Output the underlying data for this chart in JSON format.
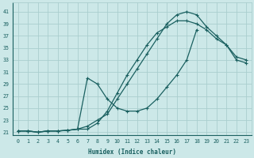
{
  "xlabel": "Humidex (Indice chaleur)",
  "xlim": [
    -0.5,
    23.5
  ],
  "ylim": [
    20.5,
    42.5
  ],
  "xticks": [
    0,
    1,
    2,
    3,
    4,
    5,
    6,
    7,
    8,
    9,
    10,
    11,
    12,
    13,
    14,
    15,
    16,
    17,
    18,
    19,
    20,
    21,
    22,
    23
  ],
  "yticks": [
    21,
    23,
    25,
    27,
    29,
    31,
    33,
    35,
    37,
    39,
    41
  ],
  "bg_color": "#cce8e8",
  "grid_color": "#aacece",
  "line_color": "#1a6060",
  "curve1_x": [
    0,
    1,
    2,
    3,
    4,
    5,
    6,
    7,
    8,
    9,
    10,
    11,
    12,
    13,
    14,
    15,
    16,
    17,
    18,
    19,
    20,
    21,
    22,
    23
  ],
  "curve1_y": [
    21.2,
    21.2,
    21.0,
    21.2,
    21.2,
    21.3,
    21.5,
    21.5,
    22.5,
    24.5,
    27.5,
    30.5,
    33.0,
    35.5,
    37.5,
    38.5,
    39.5,
    39.5,
    39.0,
    38.0,
    36.5,
    35.5,
    33.0,
    32.5
  ],
  "curve2_x": [
    0,
    1,
    2,
    3,
    4,
    5,
    6,
    7,
    8,
    9,
    10,
    11,
    12,
    13,
    14,
    15,
    16,
    17,
    18
  ],
  "curve2_y": [
    21.2,
    21.2,
    21.0,
    21.2,
    21.2,
    21.3,
    21.5,
    30.0,
    29.0,
    26.5,
    25.0,
    24.5,
    24.5,
    25.0,
    26.5,
    28.5,
    30.5,
    33.0,
    38.0
  ],
  "curve3_x": [
    0,
    1,
    2,
    3,
    4,
    5,
    6,
    7,
    8,
    9,
    10,
    11,
    12,
    13,
    14,
    15,
    16,
    17,
    18,
    19,
    20,
    21,
    22,
    23
  ],
  "curve3_y": [
    21.2,
    21.2,
    21.0,
    21.2,
    21.2,
    21.3,
    21.5,
    22.0,
    23.0,
    24.0,
    26.5,
    29.0,
    31.5,
    34.0,
    36.5,
    39.0,
    40.5,
    41.0,
    40.5,
    38.5,
    37.0,
    35.5,
    33.5,
    33.0
  ]
}
